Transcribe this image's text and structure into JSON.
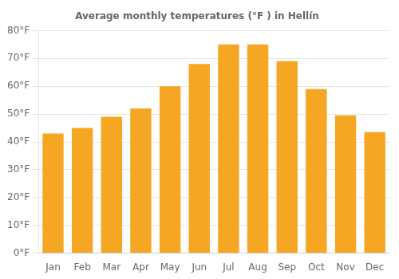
{
  "chart_data": {
    "type": "bar",
    "title": "Average monthly temperatures (°F ) in Hellín",
    "categories": [
      "Jan",
      "Feb",
      "Mar",
      "Apr",
      "May",
      "Jun",
      "Jul",
      "Aug",
      "Sep",
      "Oct",
      "Nov",
      "Dec"
    ],
    "values": [
      43,
      45,
      49,
      52,
      60,
      68,
      75,
      75,
      69,
      59,
      49.5,
      43.5
    ],
    "color": "#F5A623",
    "ylim": [
      0,
      80
    ],
    "yticks": [
      {
        "value": 0,
        "label": "0°F"
      },
      {
        "value": 10,
        "label": "10°F"
      },
      {
        "value": 20,
        "label": "20°F"
      },
      {
        "value": 30,
        "label": "30°F"
      },
      {
        "value": 40,
        "label": "40°F"
      },
      {
        "value": 50,
        "label": "50°F"
      },
      {
        "value": 60,
        "label": "60°F"
      },
      {
        "value": 70,
        "label": "70°F"
      },
      {
        "value": 80,
        "label": "80°F"
      }
    ],
    "grid": true
  }
}
